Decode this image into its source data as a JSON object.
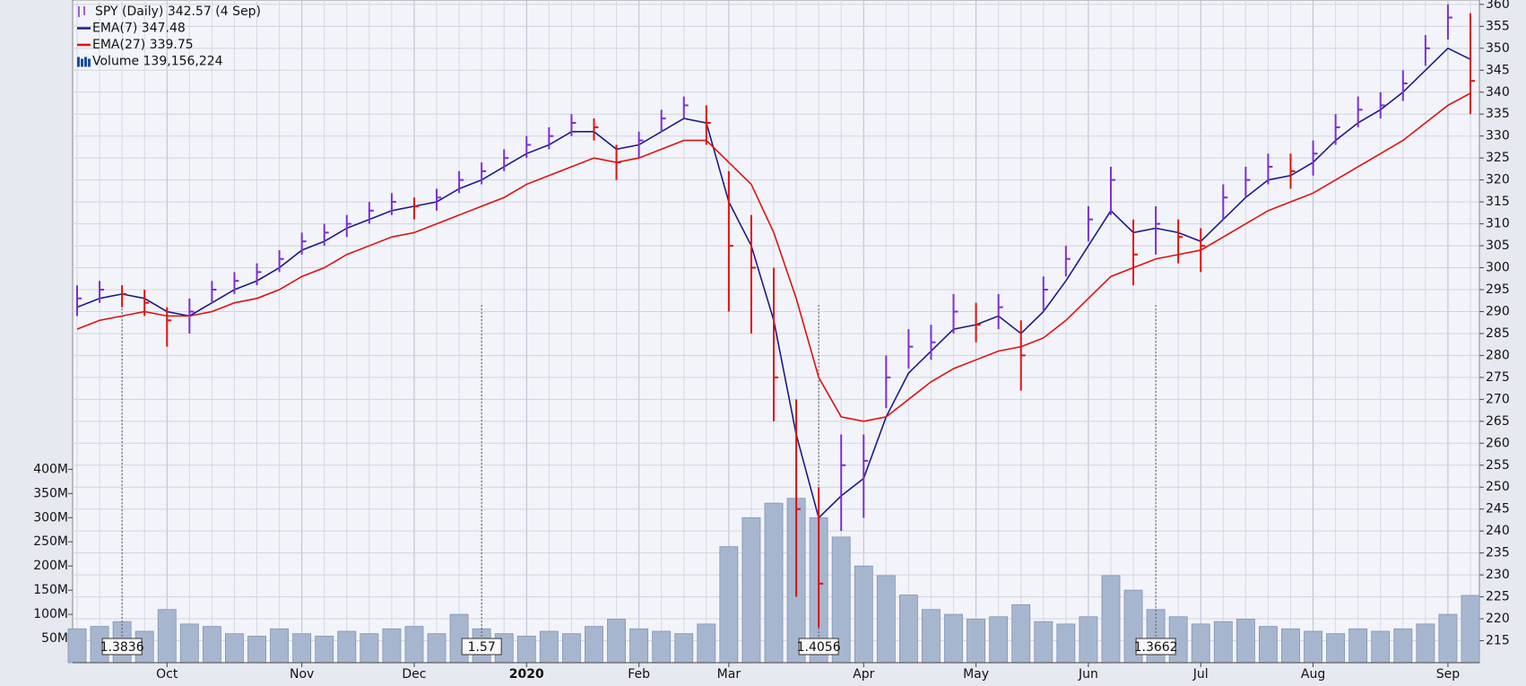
{
  "chart_data": {
    "type": "ohlc",
    "legend": [
      {
        "label": "SPY (Daily) 342.57 (4 Sep)",
        "color": "#7b2fd6"
      },
      {
        "label": "EMA(7) 347.48",
        "color": "#1a1a8c"
      },
      {
        "label": "EMA(27) 339.75",
        "color": "#e01010"
      },
      {
        "label": "Volume 139,156,224",
        "color": "#1a4f9c"
      }
    ],
    "categories": [
      null,
      null,
      null,
      null,
      "Oct",
      null,
      null,
      null,
      null,
      null,
      "Nov",
      null,
      null,
      null,
      null,
      "Dec",
      null,
      null,
      null,
      null,
      "2020",
      null,
      null,
      null,
      null,
      "Feb",
      null,
      null,
      null,
      "Mar",
      null,
      null,
      null,
      null,
      null,
      "Apr",
      null,
      null,
      null,
      null,
      "May",
      null,
      null,
      null,
      null,
      "Jun",
      null,
      null,
      null,
      null,
      "Jul",
      null,
      null,
      null,
      null,
      "Aug",
      null,
      null,
      null,
      null,
      null,
      "Sep",
      null
    ],
    "ohlc": {
      "color_up": "#7b2fd6",
      "color_down": "#e01010",
      "high": [
        296,
        297,
        296,
        295,
        291,
        293,
        297,
        299,
        301,
        304,
        308,
        310,
        312,
        315,
        317,
        316,
        318,
        322,
        324,
        327,
        330,
        332,
        335,
        334,
        328,
        331,
        336,
        339,
        337,
        322,
        312,
        300,
        270,
        250,
        262,
        262,
        280,
        286,
        287,
        294,
        292,
        294,
        288,
        298,
        305,
        314,
        323,
        311,
        314,
        311,
        309,
        319,
        323,
        326,
        326,
        329,
        335,
        339,
        340,
        345,
        353,
        360,
        358
      ],
      "low": [
        289,
        292,
        291,
        289,
        282,
        285,
        292,
        294,
        296,
        299,
        303,
        305,
        307,
        310,
        312,
        311,
        313,
        317,
        319,
        322,
        325,
        327,
        330,
        329,
        320,
        325,
        331,
        334,
        328,
        290,
        285,
        265,
        225,
        218,
        240,
        243,
        268,
        277,
        279,
        285,
        283,
        286,
        272,
        290,
        298,
        306,
        312,
        296,
        303,
        301,
        299,
        311,
        316,
        319,
        318,
        321,
        328,
        332,
        334,
        338,
        346,
        352,
        335
      ],
      "close": [
        293,
        295,
        294,
        292,
        288,
        290,
        295,
        297,
        299,
        302,
        306,
        308,
        310,
        313,
        315,
        314,
        316,
        320,
        322,
        325,
        328,
        330,
        333,
        332,
        324,
        329,
        334,
        337,
        333,
        305,
        300,
        275,
        245,
        228,
        255,
        256,
        275,
        282,
        283,
        290,
        287,
        291,
        280,
        295,
        302,
        311,
        320,
        303,
        310,
        307,
        305,
        316,
        320,
        323,
        322,
        326,
        332,
        336,
        337,
        342,
        350,
        357,
        342.57
      ]
    },
    "series": [
      {
        "color": "#1a1a8c",
        "values": [
          291,
          293,
          294,
          293,
          290,
          289,
          292,
          295,
          297,
          300,
          304,
          306,
          309,
          311,
          313,
          314,
          315,
          318,
          320,
          323,
          326,
          328,
          331,
          331,
          327,
          328,
          331,
          334,
          333,
          315,
          305,
          288,
          262,
          243,
          248,
          252,
          266,
          276,
          281,
          286,
          287,
          289,
          285,
          290,
          297,
          305,
          313,
          308,
          309,
          308,
          306,
          311,
          316,
          320,
          321,
          324,
          329,
          333,
          336,
          340,
          345,
          350,
          347.48
        ]
      },
      {
        "color": "#e01010",
        "values": [
          286,
          288,
          289,
          290,
          289,
          289,
          290,
          292,
          293,
          295,
          298,
          300,
          303,
          305,
          307,
          308,
          310,
          312,
          314,
          316,
          319,
          321,
          323,
          325,
          324,
          325,
          327,
          329,
          329,
          324,
          319,
          308,
          293,
          275,
          266,
          265,
          266,
          270,
          274,
          277,
          279,
          281,
          282,
          284,
          288,
          293,
          298,
          300,
          302,
          303,
          304,
          307,
          310,
          313,
          315,
          317,
          320,
          323,
          326,
          329,
          333,
          337,
          339.75
        ]
      }
    ],
    "volume": {
      "color": "#a7b6cf",
      "values": [
        70000000,
        75000000,
        85000000,
        65000000,
        110000000,
        80000000,
        75000000,
        60000000,
        55000000,
        70000000,
        60000000,
        55000000,
        65000000,
        60000000,
        70000000,
        75000000,
        60000000,
        100000000,
        70000000,
        60000000,
        55000000,
        65000000,
        60000000,
        75000000,
        90000000,
        70000000,
        65000000,
        60000000,
        80000000,
        240000000,
        300000000,
        330000000,
        340000000,
        300000000,
        260000000,
        200000000,
        180000000,
        140000000,
        110000000,
        100000000,
        90000000,
        95000000,
        120000000,
        85000000,
        80000000,
        95000000,
        180000000,
        150000000,
        110000000,
        95000000,
        80000000,
        85000000,
        90000000,
        75000000,
        70000000,
        65000000,
        60000000,
        70000000,
        65000000,
        70000000,
        80000000,
        100000000,
        139156224
      ]
    },
    "annotations": [
      {
        "x": 2,
        "label": "1.3836"
      },
      {
        "x": 18,
        "label": "1.57"
      },
      {
        "x": 33,
        "label": "1.4056"
      },
      {
        "x": 48,
        "label": "1.3662"
      }
    ],
    "ylim": [
      210,
      361
    ],
    "yticks": [
      215,
      220,
      225,
      230,
      235,
      240,
      245,
      250,
      255,
      260,
      265,
      270,
      275,
      280,
      285,
      290,
      295,
      300,
      305,
      310,
      315,
      320,
      325,
      330,
      335,
      340,
      345,
      350,
      355,
      360
    ],
    "vol_ylim": [
      0,
      1371000000
    ],
    "vol_ticks": [
      {
        "value": 50000000,
        "label": "50M"
      },
      {
        "value": 100000000,
        "label": "100M"
      },
      {
        "value": 150000000,
        "label": "150M"
      },
      {
        "value": 200000000,
        "label": "200M"
      },
      {
        "value": 250000000,
        "label": "250M"
      },
      {
        "value": 300000000,
        "label": "300M"
      },
      {
        "value": 350000000,
        "label": "350M"
      },
      {
        "value": 400000000,
        "label": "400M"
      }
    ],
    "grid": true
  }
}
